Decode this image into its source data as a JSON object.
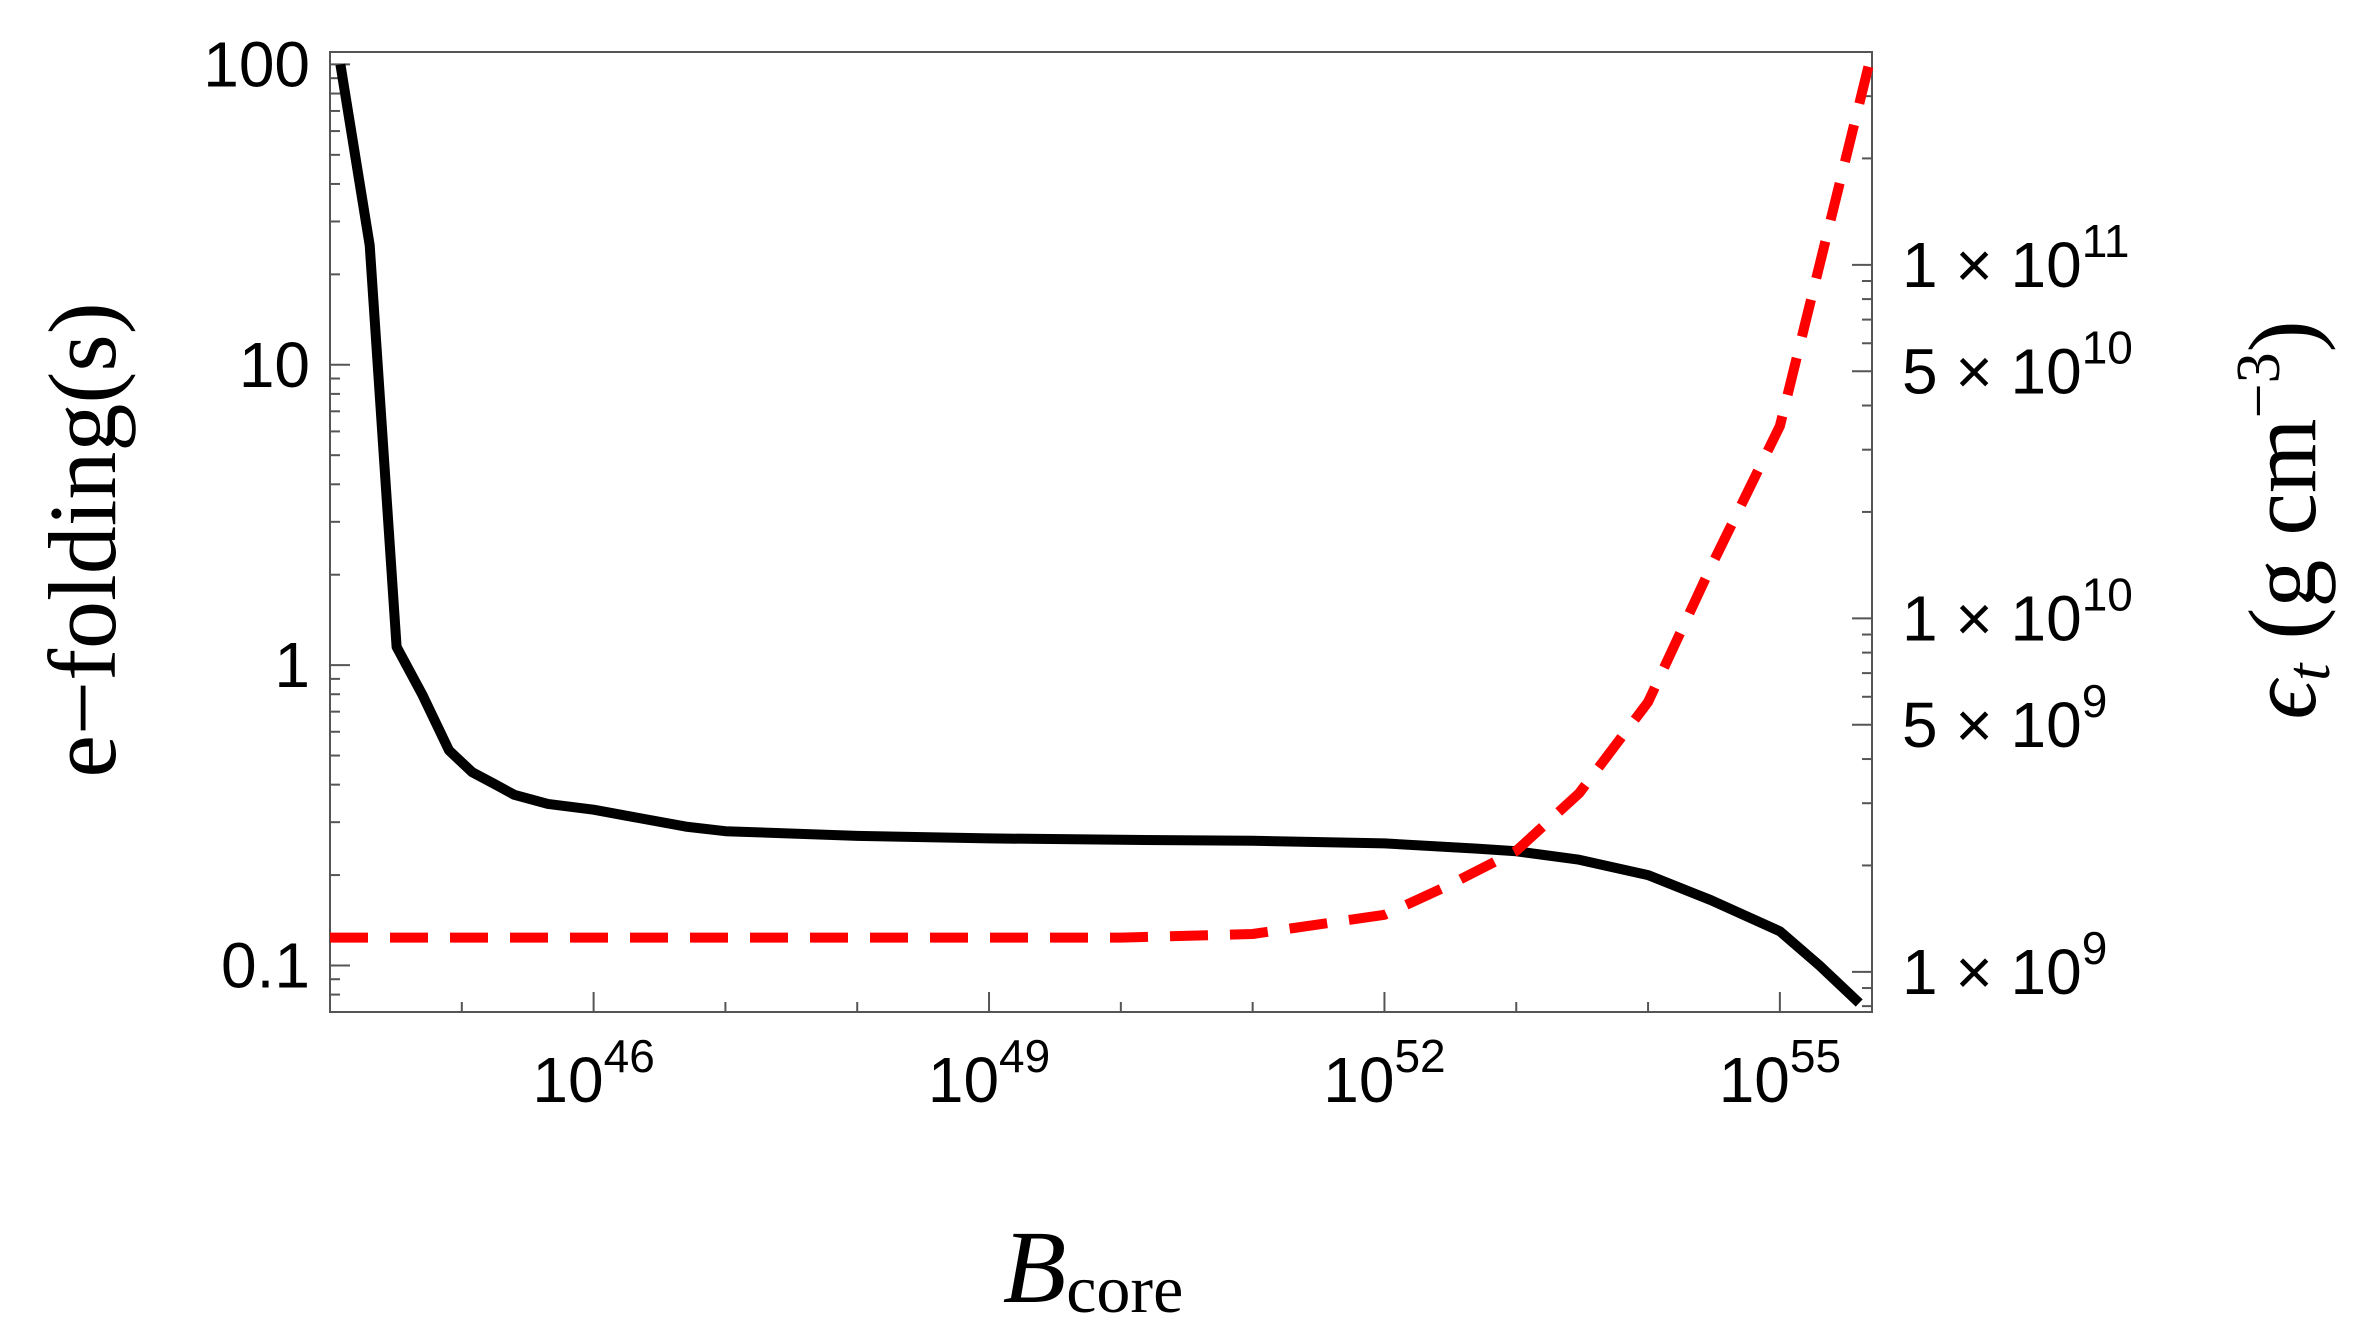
{
  "chart_data": {
    "type": "line",
    "xlabel": {
      "main": "B",
      "sub": "core"
    },
    "ylabel_left": "e−folding(s)",
    "ylabel_right": {
      "main": "ϵ",
      "sub": "t",
      "paren_open": " (g cm",
      "sup": "−3",
      "paren_close": ")"
    },
    "x_scale": "log10",
    "xlim": [
      1e+44,
      5e+55
    ],
    "x_ticks": [
      {
        "value": 1e+46,
        "base": "10",
        "exp": "46"
      },
      {
        "value": 1e+49,
        "base": "10",
        "exp": "49"
      },
      {
        "value": 1e+52,
        "base": "10",
        "exp": "52"
      },
      {
        "value": 1e+55,
        "base": "10",
        "exp": "55"
      }
    ],
    "y_left_scale": "log10",
    "y_left_lim": [
      0.07,
      110
    ],
    "y_left_ticks": [
      {
        "value": 100,
        "label": "100"
      },
      {
        "value": 10,
        "label": "10"
      },
      {
        "value": 1,
        "label": "1"
      },
      {
        "value": 0.1,
        "label": "0.1"
      }
    ],
    "y_right_scale": "log10",
    "y_right_lim": [
      770000000.0,
      400000000000.0
    ],
    "y_right_ticks": [
      {
        "value": 100000000000.0,
        "label": "1 × 10",
        "exp": "11"
      },
      {
        "value": 50000000000.0,
        "label": "5 × 10",
        "exp": "10"
      },
      {
        "value": 10000000000.0,
        "label": "1 × 10",
        "exp": "10"
      },
      {
        "value": 5000000000.0,
        "label": "5 × 10",
        "exp": "9"
      },
      {
        "value": 1000000000.0,
        "label": "1 × 10",
        "exp": "9"
      }
    ],
    "series": [
      {
        "axis": "left",
        "color": "#000000",
        "dash": "solid",
        "x": [
          1.2e+44,
          2e+44,
          3.2e+44,
          5e+44,
          8e+44,
          1.2e+45,
          1.8e+45,
          2.5e+45,
          4.5e+45,
          1e+46,
          5e+46,
          1e+47,
          1e+48,
          1e+49,
          1e+50,
          1e+51,
          1e+52,
          5e+52,
          1e+53,
          3e+53,
          1e+54,
          3e+54,
          1e+55,
          2e+55,
          4e+55
        ],
        "y": [
          100,
          25,
          1.15,
          0.8,
          0.52,
          0.44,
          0.4,
          0.37,
          0.345,
          0.33,
          0.29,
          0.28,
          0.27,
          0.265,
          0.262,
          0.26,
          0.255,
          0.245,
          0.24,
          0.225,
          0.2,
          0.165,
          0.13,
          0.1,
          0.075
        ]
      },
      {
        "axis": "right",
        "color": "#ff0000",
        "dash": "dashed",
        "x": [
          1e+44,
          1e+45,
          1e+46,
          1e+47,
          1e+48,
          1e+49,
          1e+50,
          1e+51,
          1e+52,
          3e+52,
          1e+53,
          3e+53,
          1e+54,
          3e+54,
          1e+55,
          5e+55
        ],
        "y": [
          1250000000.0,
          1250000000.0,
          1250000000.0,
          1250000000.0,
          1250000000.0,
          1250000000.0,
          1250000000.0,
          1280000000.0,
          1450000000.0,
          1750000000.0,
          2200000000.0,
          3200000000.0,
          5800000000.0,
          14000000000.0,
          35000000000.0,
          400000000000.0
        ]
      }
    ]
  }
}
